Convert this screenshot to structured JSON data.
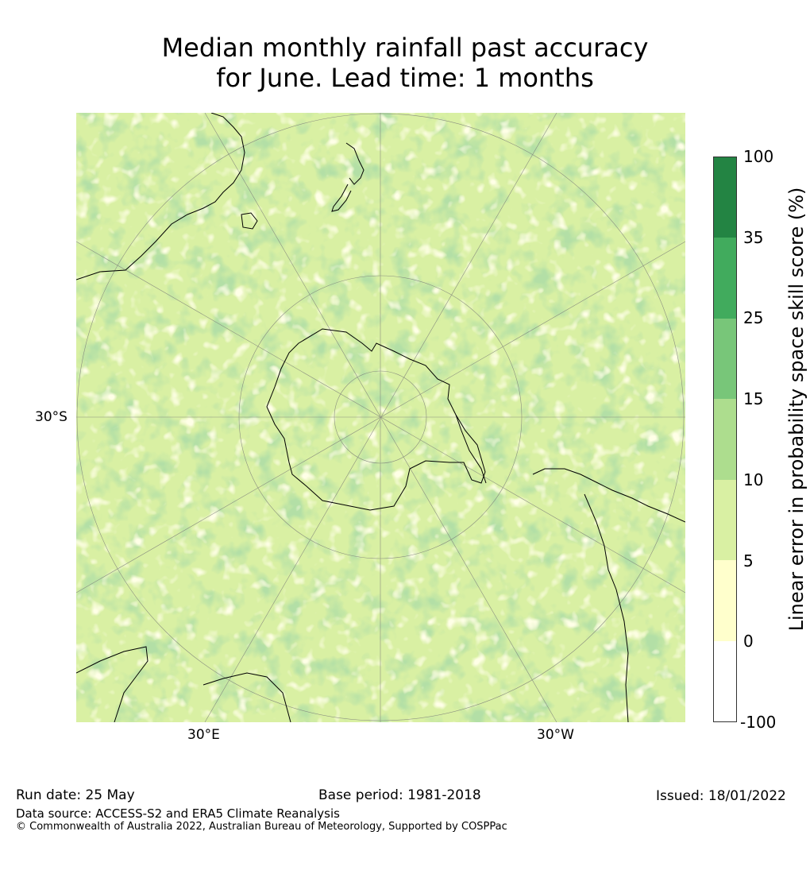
{
  "title_line1": "Median monthly rainfall past accuracy",
  "title_line2": "for June. Lead time: 1 months",
  "map": {
    "projection": "south-polar-stereographic",
    "lat_label": "30°S",
    "lon_labels": [
      "30°E",
      "30°W"
    ],
    "land_outline_color": "#000000",
    "graticule_color": "#777777"
  },
  "colorbar": {
    "label": "Linear error in probability space skill score (%)",
    "ticks": [
      "100",
      "35",
      "25",
      "15",
      "10",
      "5",
      "0",
      "-100"
    ],
    "bins": [
      {
        "from": -100,
        "to": 0,
        "color": "#ffffff"
      },
      {
        "from": 0,
        "to": 5,
        "color": "#ffffcc"
      },
      {
        "from": 5,
        "to": 10,
        "color": "#d9f0a3"
      },
      {
        "from": 10,
        "to": 15,
        "color": "#addd8e"
      },
      {
        "from": 15,
        "to": 25,
        "color": "#78c679"
      },
      {
        "from": 25,
        "to": 35,
        "color": "#41ab5d"
      },
      {
        "from": 35,
        "to": 100,
        "color": "#238443"
      }
    ]
  },
  "footer": {
    "run_date": "Run date: 25 May",
    "base_period": "Base period: 1981-2018",
    "issued": "Issued: 18/01/2022",
    "data_source": "Data source: ACCESS-S2 and ERA5 Climate Reanalysis",
    "copyright": "© Commonwealth of Australia 2022, Australian Bureau of Meteorology, Supported by COSPPac"
  }
}
